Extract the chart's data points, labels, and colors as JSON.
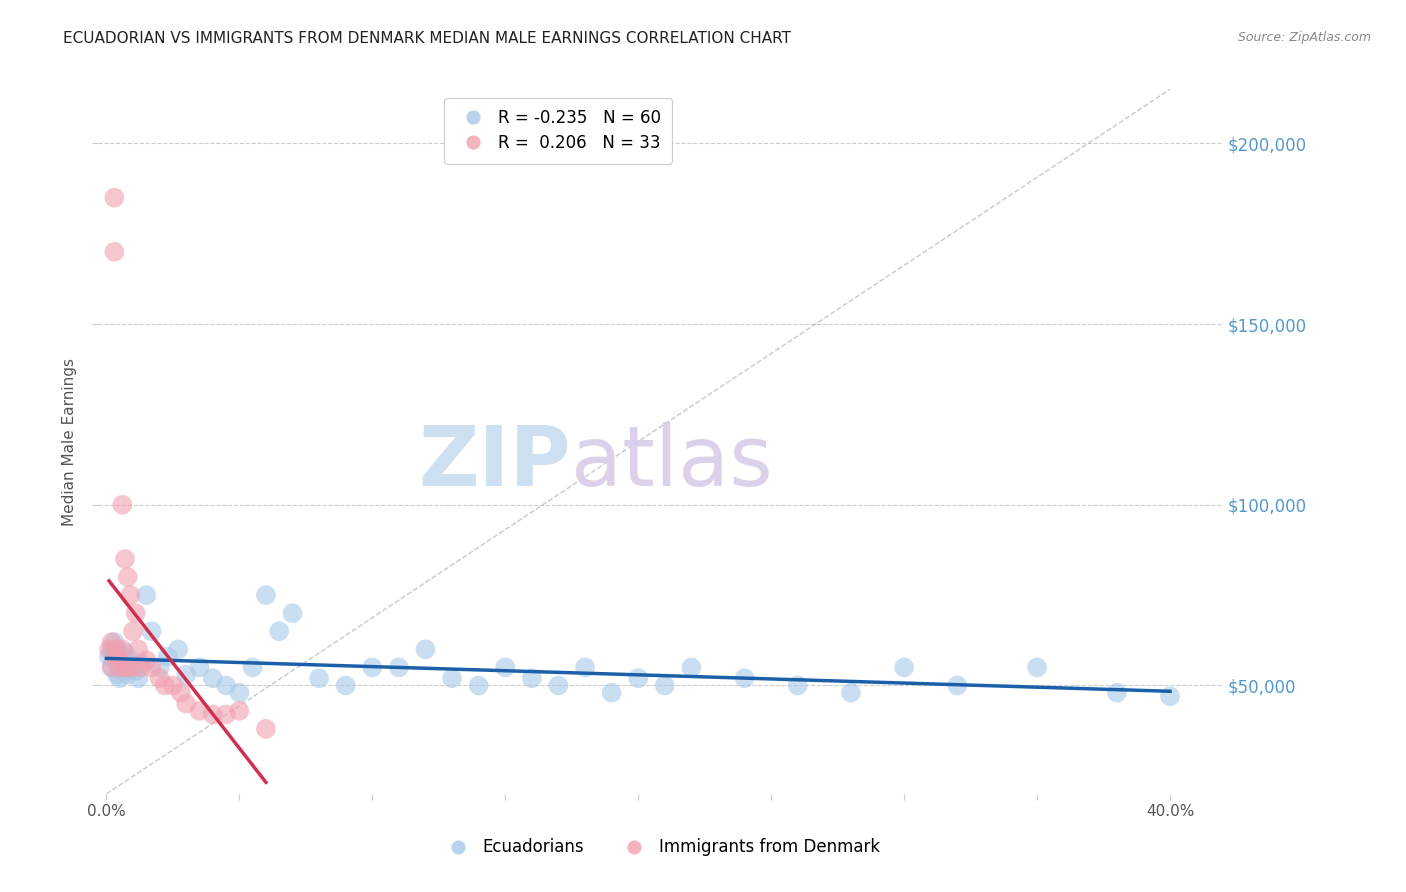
{
  "title": "ECUADORIAN VS IMMIGRANTS FROM DENMARK MEDIAN MALE EARNINGS CORRELATION CHART",
  "source": "Source: ZipAtlas.com",
  "ylabel": "Median Male Earnings",
  "ytick_values": [
    50000,
    100000,
    150000,
    200000
  ],
  "ymin": 20000,
  "ymax": 215000,
  "xmin": -0.003,
  "xmax": 0.42,
  "blue_color": "#a8c8e8",
  "pink_color": "#f0a0b0",
  "blue_trend_color": "#1a5fa8",
  "pink_trend_color": "#d03050",
  "grid_color": "#cccccc",
  "diag_color": "#bbbbbb",
  "axis_label_color": "#5599cc",
  "title_color": "#222222",
  "source_color": "#888888",
  "watermark_zip_color": "#c8ddf0",
  "watermark_atlas_color": "#d8cce8",
  "legend_R1": "-0.235",
  "legend_N1": "60",
  "legend_R2": "0.206",
  "legend_N2": "33",
  "legend_label1": "Ecuadorians",
  "legend_label2": "Immigrants from Denmark",
  "ecuadorians_x": [
    0.001,
    0.002,
    0.002,
    0.003,
    0.003,
    0.003,
    0.004,
    0.004,
    0.004,
    0.005,
    0.005,
    0.005,
    0.006,
    0.006,
    0.007,
    0.007,
    0.008,
    0.008,
    0.009,
    0.01,
    0.011,
    0.012,
    0.013,
    0.015,
    0.017,
    0.02,
    0.023,
    0.027,
    0.03,
    0.035,
    0.04,
    0.045,
    0.05,
    0.055,
    0.06,
    0.065,
    0.07,
    0.08,
    0.09,
    0.1,
    0.11,
    0.12,
    0.13,
    0.14,
    0.15,
    0.16,
    0.17,
    0.18,
    0.19,
    0.2,
    0.21,
    0.22,
    0.24,
    0.26,
    0.28,
    0.3,
    0.32,
    0.35,
    0.38,
    0.4
  ],
  "ecuadorians_y": [
    58000,
    60000,
    55000,
    57000,
    62000,
    59000,
    56000,
    53000,
    60000,
    57000,
    55000,
    52000,
    58000,
    54000,
    56000,
    59000,
    55000,
    53000,
    57000,
    55000,
    54000,
    52000,
    56000,
    75000,
    65000,
    55000,
    58000,
    60000,
    53000,
    55000,
    52000,
    50000,
    48000,
    55000,
    75000,
    65000,
    70000,
    52000,
    50000,
    55000,
    55000,
    60000,
    52000,
    50000,
    55000,
    52000,
    50000,
    55000,
    48000,
    52000,
    50000,
    55000,
    52000,
    50000,
    48000,
    55000,
    50000,
    55000,
    48000,
    47000
  ],
  "denmark_x": [
    0.001,
    0.002,
    0.002,
    0.003,
    0.003,
    0.004,
    0.004,
    0.005,
    0.005,
    0.006,
    0.006,
    0.007,
    0.007,
    0.008,
    0.008,
    0.009,
    0.01,
    0.01,
    0.011,
    0.012,
    0.013,
    0.015,
    0.017,
    0.02,
    0.022,
    0.025,
    0.028,
    0.03,
    0.035,
    0.04,
    0.045,
    0.05,
    0.06
  ],
  "denmark_y": [
    60000,
    62000,
    55000,
    185000,
    170000,
    60000,
    58000,
    57000,
    55000,
    100000,
    60000,
    85000,
    55000,
    80000,
    55000,
    75000,
    65000,
    55000,
    70000,
    60000,
    55000,
    57000,
    55000,
    52000,
    50000,
    50000,
    48000,
    45000,
    43000,
    42000,
    42000,
    43000,
    38000
  ]
}
